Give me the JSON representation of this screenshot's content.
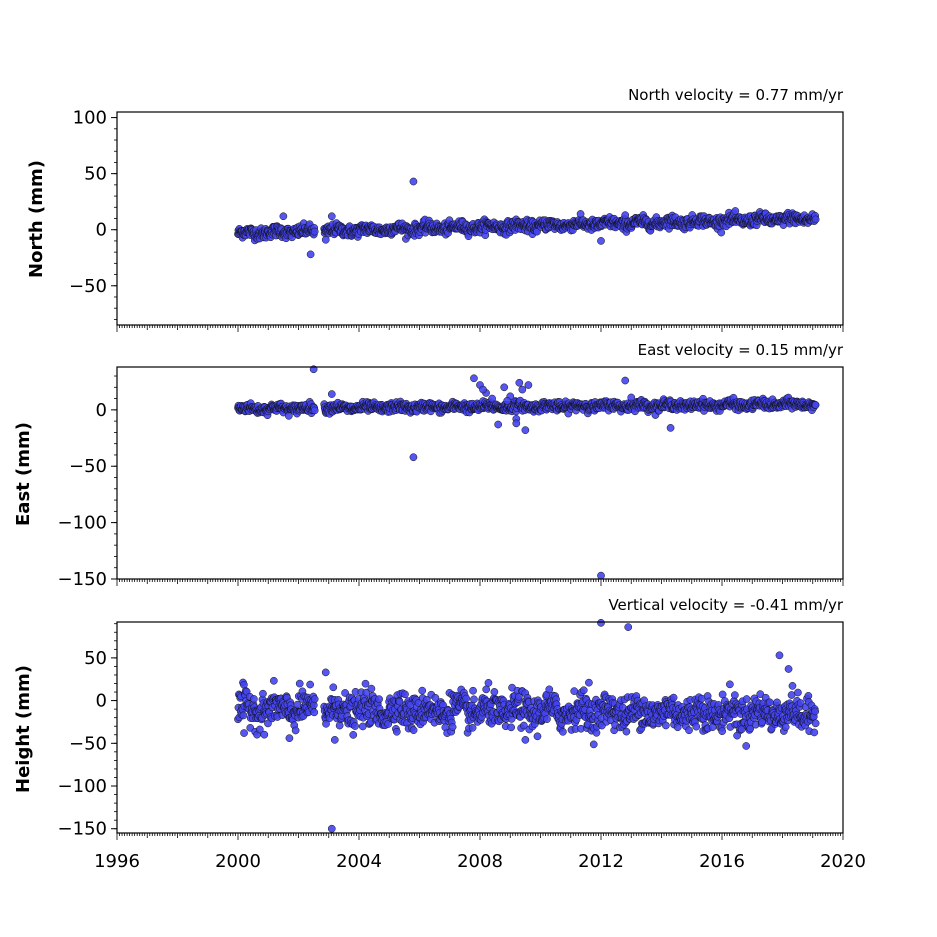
{
  "chart_data": [
    {
      "type": "scatter",
      "title": "North velocity = 0.77 mm/yr",
      "ylabel": "North (mm)",
      "xlabel": "",
      "xlim": [
        1996,
        2020
      ],
      "ylim": [
        -85,
        105
      ],
      "yticks": [
        100,
        50,
        0,
        -50
      ],
      "xticks": [],
      "marker_color": "#4444ee",
      "trend": {
        "start_year": 2000,
        "end_year": 2019.1,
        "start": -3,
        "end": 10,
        "noise": 2.5,
        "offset_after_2003": 0
      },
      "series": [
        {
          "outliers": [
            [
              2001.5,
              12
            ],
            [
              2002.4,
              -22
            ],
            [
              2003.1,
              12
            ],
            [
              2005.8,
              43
            ],
            [
              2012.0,
              -10
            ],
            [
              2012.8,
              13
            ],
            [
              2002.9,
              -9
            ]
          ]
        }
      ]
    },
    {
      "type": "scatter",
      "title": "East velocity = 0.15 mm/yr",
      "ylabel": "East (mm)",
      "xlabel": "",
      "xlim": [
        1996,
        2020
      ],
      "ylim": [
        -150,
        38
      ],
      "yticks": [
        0,
        -50,
        -100,
        -150
      ],
      "xticks": [],
      "marker_color": "#4444ee",
      "trend": {
        "start_year": 2000,
        "end_year": 2019.1,
        "start": 1,
        "end": 5,
        "noise": 2.0
      },
      "series": [
        {
          "outliers": [
            [
              2002.5,
              36
            ],
            [
              2003.1,
              14
            ],
            [
              2005.8,
              -42
            ],
            [
              2007.8,
              28
            ],
            [
              2008.0,
              22
            ],
            [
              2008.2,
              15
            ],
            [
              2008.4,
              10
            ],
            [
              2008.6,
              -13
            ],
            [
              2008.8,
              20
            ],
            [
              2009.0,
              12
            ],
            [
              2009.2,
              -8
            ],
            [
              2009.3,
              24
            ],
            [
              2009.4,
              18
            ],
            [
              2009.5,
              -18
            ],
            [
              2009.6,
              22
            ],
            [
              2009.2,
              -12
            ],
            [
              2008.1,
              18
            ],
            [
              2008.9,
              8
            ],
            [
              2012.0,
              -147
            ],
            [
              2012.8,
              26
            ],
            [
              2013.0,
              11
            ],
            [
              2014.3,
              -16
            ]
          ]
        }
      ]
    },
    {
      "type": "scatter",
      "title": "Vertical velocity = -0.41 mm/yr",
      "ylabel": "Height (mm)",
      "xlabel": "",
      "xlim": [
        1996,
        2020
      ],
      "ylim": [
        -155,
        92
      ],
      "yticks": [
        50,
        0,
        -50,
        -100,
        -150
      ],
      "xticks": [
        "1996",
        "2000",
        "2004",
        "2008",
        "2012",
        "2016",
        "2020"
      ],
      "marker_color": "#4444ee",
      "trend": {
        "start_year": 2000,
        "end_year": 2019.1,
        "start": -10,
        "end": -15,
        "noise": 10
      },
      "series": [
        {
          "outliers": [
            [
              2002.9,
              33
            ],
            [
              2003.1,
              -150
            ],
            [
              2003.2,
              -46
            ],
            [
              2001.7,
              -44
            ],
            [
              2012.0,
              91
            ],
            [
              2012.9,
              86
            ],
            [
              2009.5,
              -46
            ],
            [
              2017.9,
              53
            ],
            [
              2018.2,
              37
            ],
            [
              2016.5,
              -41
            ],
            [
              2011.6,
              21
            ],
            [
              2000.2,
              -38
            ]
          ]
        }
      ]
    }
  ]
}
